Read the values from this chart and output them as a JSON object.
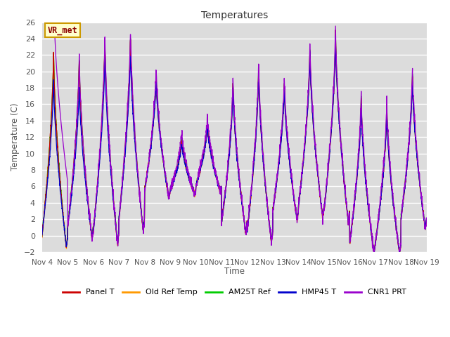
{
  "title": "Temperatures",
  "ylabel": "Temperature (C)",
  "xlabel": "Time",
  "annotation": "VR_met",
  "ylim": [
    -2,
    26
  ],
  "plot_bg_color": "#dcdcdc",
  "fig_bg_color": "#ffffff",
  "grid_color": "#ffffff",
  "xtick_labels": [
    "Nov 4",
    "Nov 5",
    "Nov 6",
    "Nov 7",
    "Nov 8",
    "Nov 9",
    "Nov 10",
    "Nov 11",
    "Nov 12",
    "Nov 13",
    "Nov 14",
    "Nov 15",
    "Nov 16",
    "Nov 17",
    "Nov 18",
    "Nov 19"
  ],
  "legend": [
    {
      "label": "Panel T",
      "color": "#cc0000"
    },
    {
      "label": "Old Ref Temp",
      "color": "#ff9900"
    },
    {
      "label": "AM25T Ref",
      "color": "#00cc00"
    },
    {
      "label": "HMP45 T",
      "color": "#0000cc"
    },
    {
      "label": "CNR1 PRT",
      "color": "#9900cc"
    }
  ],
  "line_width": 0.9,
  "n_points": 2160
}
